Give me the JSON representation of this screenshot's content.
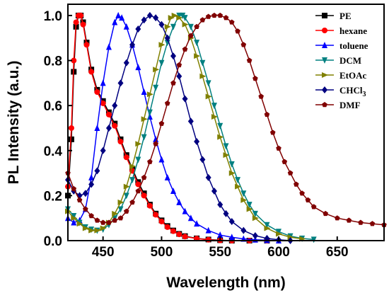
{
  "chart_data": {
    "type": "line",
    "xlabel": "Wavelength (nm)",
    "ylabel": "PL Intensity (a.u.)",
    "xlim": [
      420,
      690
    ],
    "ylim": [
      0,
      1.05
    ],
    "xticks": [
      450,
      500,
      550,
      600,
      650
    ],
    "yticks": [
      0.0,
      0.2,
      0.4,
      0.6,
      0.8,
      1.0
    ],
    "xtick_labels": [
      "450",
      "500",
      "550",
      "600",
      "650"
    ],
    "ytick_labels": [
      "0.0",
      "0.2",
      "0.4",
      "0.6",
      "0.8",
      "1.0"
    ],
    "grid": false,
    "legend_position": "top-right",
    "series": [
      {
        "name": "PE",
        "marker": "square",
        "color": "#000000",
        "points": [
          [
            420,
            0.2
          ],
          [
            423,
            0.45
          ],
          [
            425,
            0.75
          ],
          [
            427,
            0.95
          ],
          [
            429,
            1.0
          ],
          [
            431,
            1.0
          ],
          [
            433,
            0.97
          ],
          [
            436,
            0.88
          ],
          [
            440,
            0.76
          ],
          [
            445,
            0.67
          ],
          [
            450,
            0.62
          ],
          [
            455,
            0.57
          ],
          [
            460,
            0.52
          ],
          [
            465,
            0.45
          ],
          [
            470,
            0.38
          ],
          [
            475,
            0.32
          ],
          [
            480,
            0.26
          ],
          [
            485,
            0.21
          ],
          [
            490,
            0.16
          ],
          [
            495,
            0.12
          ],
          [
            500,
            0.09
          ],
          [
            505,
            0.065
          ],
          [
            510,
            0.045
          ],
          [
            515,
            0.03
          ],
          [
            520,
            0.02
          ],
          [
            530,
            0.01
          ],
          [
            540,
            0.005
          ],
          [
            550,
            0.002
          ],
          [
            560,
            0.0
          ],
          [
            575,
            0.0
          ],
          [
            590,
            0.0
          ]
        ]
      },
      {
        "name": "hexane",
        "marker": "circle",
        "color": "#ff0000",
        "points": [
          [
            420,
            0.24
          ],
          [
            423,
            0.5
          ],
          [
            425,
            0.8
          ],
          [
            427,
            0.97
          ],
          [
            429,
            1.0
          ],
          [
            431,
            1.0
          ],
          [
            433,
            0.96
          ],
          [
            436,
            0.87
          ],
          [
            440,
            0.75
          ],
          [
            445,
            0.66
          ],
          [
            450,
            0.61
          ],
          [
            455,
            0.56
          ],
          [
            460,
            0.51
          ],
          [
            465,
            0.44
          ],
          [
            470,
            0.37
          ],
          [
            475,
            0.31
          ],
          [
            480,
            0.25
          ],
          [
            485,
            0.2
          ],
          [
            490,
            0.155
          ],
          [
            495,
            0.115
          ],
          [
            500,
            0.085
          ],
          [
            505,
            0.06
          ],
          [
            510,
            0.042
          ],
          [
            515,
            0.028
          ],
          [
            520,
            0.018
          ],
          [
            530,
            0.009
          ],
          [
            540,
            0.004
          ],
          [
            550,
            0.001
          ],
          [
            560,
            0.0
          ],
          [
            575,
            0.0
          ],
          [
            590,
            0.0
          ]
        ]
      },
      {
        "name": "toluene",
        "marker": "triangle-up",
        "color": "#0000ff",
        "points": [
          [
            420,
            0.1
          ],
          [
            425,
            0.08
          ],
          [
            430,
            0.09
          ],
          [
            435,
            0.14
          ],
          [
            440,
            0.28
          ],
          [
            445,
            0.5
          ],
          [
            450,
            0.7
          ],
          [
            455,
            0.86
          ],
          [
            460,
            0.97
          ],
          [
            463,
            1.0
          ],
          [
            466,
            0.99
          ],
          [
            470,
            0.95
          ],
          [
            475,
            0.87
          ],
          [
            480,
            0.77
          ],
          [
            485,
            0.66
          ],
          [
            490,
            0.55
          ],
          [
            495,
            0.45
          ],
          [
            500,
            0.36
          ],
          [
            505,
            0.28
          ],
          [
            510,
            0.22
          ],
          [
            515,
            0.17
          ],
          [
            520,
            0.13
          ],
          [
            525,
            0.1
          ],
          [
            530,
            0.075
          ],
          [
            540,
            0.045
          ],
          [
            550,
            0.025
          ],
          [
            560,
            0.015
          ],
          [
            570,
            0.008
          ],
          [
            580,
            0.004
          ],
          [
            590,
            0.002
          ],
          [
            600,
            0.0
          ]
        ]
      },
      {
        "name": "DCM",
        "marker": "triangle-down",
        "color": "#008080",
        "points": [
          [
            420,
            0.14
          ],
          [
            425,
            0.11
          ],
          [
            430,
            0.08
          ],
          [
            435,
            0.06
          ],
          [
            440,
            0.05
          ],
          [
            445,
            0.045
          ],
          [
            450,
            0.05
          ],
          [
            455,
            0.07
          ],
          [
            460,
            0.1
          ],
          [
            465,
            0.14
          ],
          [
            470,
            0.2
          ],
          [
            475,
            0.27
          ],
          [
            480,
            0.36
          ],
          [
            485,
            0.46
          ],
          [
            490,
            0.57
          ],
          [
            495,
            0.68
          ],
          [
            500,
            0.79
          ],
          [
            505,
            0.88
          ],
          [
            510,
            0.95
          ],
          [
            515,
            1.0
          ],
          [
            518,
            1.0
          ],
          [
            520,
            0.99
          ],
          [
            525,
            0.95
          ],
          [
            530,
            0.88
          ],
          [
            535,
            0.79
          ],
          [
            540,
            0.7
          ],
          [
            545,
            0.6
          ],
          [
            550,
            0.51
          ],
          [
            555,
            0.42
          ],
          [
            560,
            0.34
          ],
          [
            565,
            0.27
          ],
          [
            570,
            0.21
          ],
          [
            575,
            0.16
          ],
          [
            580,
            0.12
          ],
          [
            590,
            0.07
          ],
          [
            600,
            0.04
          ],
          [
            610,
            0.02
          ],
          [
            620,
            0.01
          ],
          [
            630,
            0.005
          ]
        ]
      },
      {
        "name": "EtOAc",
        "marker": "triangle-right",
        "color": "#808000",
        "points": [
          [
            420,
            0.13
          ],
          [
            425,
            0.1
          ],
          [
            430,
            0.075
          ],
          [
            435,
            0.055
          ],
          [
            440,
            0.045
          ],
          [
            445,
            0.045
          ],
          [
            450,
            0.055
          ],
          [
            455,
            0.08
          ],
          [
            460,
            0.12
          ],
          [
            465,
            0.17
          ],
          [
            470,
            0.24
          ],
          [
            475,
            0.33
          ],
          [
            480,
            0.43
          ],
          [
            485,
            0.54
          ],
          [
            490,
            0.65
          ],
          [
            495,
            0.76
          ],
          [
            500,
            0.87
          ],
          [
            505,
            0.95
          ],
          [
            508,
            0.99
          ],
          [
            511,
            1.0
          ],
          [
            515,
            0.99
          ],
          [
            520,
            0.96
          ],
          [
            525,
            0.9
          ],
          [
            530,
            0.82
          ],
          [
            535,
            0.73
          ],
          [
            540,
            0.64
          ],
          [
            545,
            0.55
          ],
          [
            550,
            0.46
          ],
          [
            555,
            0.38
          ],
          [
            560,
            0.3
          ],
          [
            565,
            0.24
          ],
          [
            570,
            0.18
          ],
          [
            575,
            0.14
          ],
          [
            580,
            0.1
          ],
          [
            590,
            0.055
          ],
          [
            600,
            0.03
          ],
          [
            610,
            0.015
          ],
          [
            620,
            0.008
          ]
        ]
      },
      {
        "name": "CHCl3",
        "marker": "diamond",
        "color": "#000080",
        "points": [
          [
            420,
            0.27
          ],
          [
            425,
            0.22
          ],
          [
            430,
            0.2
          ],
          [
            435,
            0.21
          ],
          [
            440,
            0.25
          ],
          [
            445,
            0.31
          ],
          [
            450,
            0.4
          ],
          [
            455,
            0.5
          ],
          [
            460,
            0.6
          ],
          [
            465,
            0.7
          ],
          [
            470,
            0.79
          ],
          [
            475,
            0.87
          ],
          [
            480,
            0.94
          ],
          [
            485,
            0.98
          ],
          [
            490,
            1.0
          ],
          [
            495,
            0.99
          ],
          [
            500,
            0.96
          ],
          [
            505,
            0.9
          ],
          [
            510,
            0.82
          ],
          [
            515,
            0.73
          ],
          [
            520,
            0.63
          ],
          [
            525,
            0.53
          ],
          [
            530,
            0.44
          ],
          [
            535,
            0.36
          ],
          [
            540,
            0.28
          ],
          [
            545,
            0.22
          ],
          [
            550,
            0.16
          ],
          [
            555,
            0.12
          ],
          [
            560,
            0.085
          ],
          [
            570,
            0.045
          ],
          [
            580,
            0.022
          ],
          [
            590,
            0.01
          ],
          [
            600,
            0.004
          ],
          [
            610,
            0.0
          ]
        ]
      },
      {
        "name": "DMF",
        "marker": "pentagon",
        "color": "#800000",
        "points": [
          [
            420,
            0.3
          ],
          [
            425,
            0.23
          ],
          [
            430,
            0.18
          ],
          [
            435,
            0.14
          ],
          [
            440,
            0.11
          ],
          [
            445,
            0.09
          ],
          [
            450,
            0.08
          ],
          [
            455,
            0.08
          ],
          [
            460,
            0.09
          ],
          [
            465,
            0.1
          ],
          [
            470,
            0.13
          ],
          [
            475,
            0.17
          ],
          [
            480,
            0.22
          ],
          [
            485,
            0.28
          ],
          [
            490,
            0.35
          ],
          [
            495,
            0.43
          ],
          [
            500,
            0.52
          ],
          [
            505,
            0.61
          ],
          [
            510,
            0.7
          ],
          [
            515,
            0.78
          ],
          [
            520,
            0.85
          ],
          [
            525,
            0.91
          ],
          [
            530,
            0.95
          ],
          [
            535,
            0.98
          ],
          [
            540,
            0.995
          ],
          [
            545,
            1.0
          ],
          [
            550,
            1.0
          ],
          [
            555,
            0.99
          ],
          [
            560,
            0.97
          ],
          [
            565,
            0.93
          ],
          [
            570,
            0.87
          ],
          [
            575,
            0.8
          ],
          [
            580,
            0.72
          ],
          [
            585,
            0.64
          ],
          [
            590,
            0.56
          ],
          [
            595,
            0.48
          ],
          [
            600,
            0.41
          ],
          [
            605,
            0.35
          ],
          [
            610,
            0.3
          ],
          [
            615,
            0.25
          ],
          [
            620,
            0.21
          ],
          [
            625,
            0.18
          ],
          [
            630,
            0.15
          ],
          [
            640,
            0.12
          ],
          [
            650,
            0.1
          ],
          [
            660,
            0.09
          ],
          [
            670,
            0.08
          ],
          [
            680,
            0.075
          ],
          [
            690,
            0.07
          ]
        ]
      }
    ],
    "legend": [
      {
        "label": "PE"
      },
      {
        "label": "hexane"
      },
      {
        "label": "toluene"
      },
      {
        "label": "DCM"
      },
      {
        "label": "EtOAc"
      },
      {
        "label": "CHCl",
        "sub": "3"
      },
      {
        "label": "DMF"
      }
    ]
  }
}
